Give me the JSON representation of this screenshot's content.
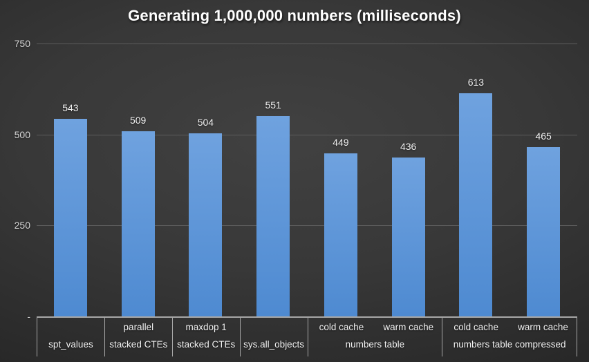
{
  "chart_data": {
    "type": "bar",
    "title": "Generating 1,000,000 numbers (milliseconds)",
    "xlabel": "",
    "ylabel": "",
    "ylim": [
      0,
      750
    ],
    "grid": true,
    "legend": false,
    "yticks": [
      {
        "label": "750",
        "value": 750
      },
      {
        "label": "500",
        "value": 500
      },
      {
        "label": "250",
        "value": 250
      },
      {
        "label": "-",
        "value": 0
      }
    ],
    "groups": [
      {
        "label": "spt_values",
        "bars": [
          {
            "sublabel": "",
            "value": 543
          }
        ]
      },
      {
        "label": "stacked CTEs",
        "bars": [
          {
            "sublabel": "parallel",
            "value": 509
          }
        ]
      },
      {
        "label": "stacked CTEs",
        "bars": [
          {
            "sublabel": "maxdop 1",
            "value": 504
          }
        ]
      },
      {
        "label": "sys.all_objects",
        "bars": [
          {
            "sublabel": "",
            "value": 551
          }
        ]
      },
      {
        "label": "numbers table",
        "bars": [
          {
            "sublabel": "cold cache",
            "value": 449
          },
          {
            "sublabel": "warm cache",
            "value": 436
          }
        ]
      },
      {
        "label": "numbers table compressed",
        "bars": [
          {
            "sublabel": "cold cache",
            "value": 613
          },
          {
            "sublabel": "warm cache",
            "value": 465
          }
        ]
      }
    ],
    "values": [
      543,
      509,
      504,
      551,
      449,
      436,
      613,
      465
    ],
    "colors": {
      "bar_top": "#6FA2DF",
      "bar_bottom": "#4E8AD1",
      "gridline": "#5d5d5d",
      "axis_line": "#a8a8a8",
      "title_text": "#ffffff",
      "tick_text": "#d6d6d6",
      "category_text": "#f2f2f2",
      "data_label_text": "#f2f2f2"
    }
  }
}
